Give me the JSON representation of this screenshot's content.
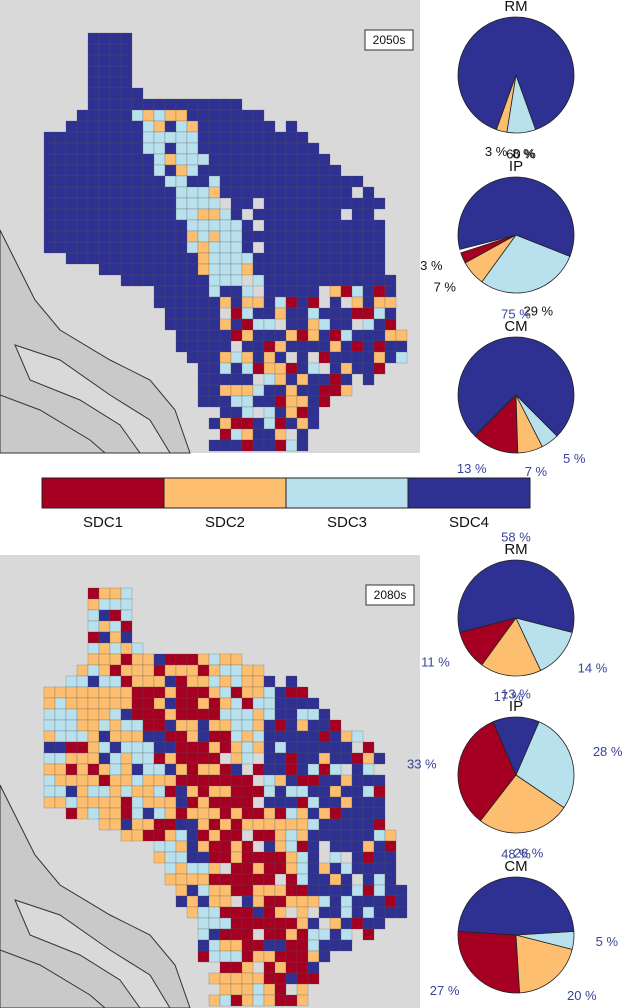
{
  "chart_data": {
    "type": "pie",
    "legend": {
      "categories": [
        "SDC1",
        "SDC2",
        "SDC3",
        "SDC4"
      ],
      "colors": [
        "#a50021",
        "#fdbf6f",
        "#b9e1ed",
        "#2e3192"
      ]
    },
    "panels": [
      {
        "period": "2050s",
        "pies": [
          {
            "title": "RM",
            "label_color": "#111111",
            "values": [
              null,
              3,
              8,
              89
            ],
            "value_labels": [
              null,
              "3 %",
              "8 %",
              "89 %"
            ]
          },
          {
            "title": "IP",
            "label_color": "#111111",
            "values": [
              3,
              7,
              29,
              60
            ],
            "value_labels": [
              "3 %",
              "7 %",
              "29 %",
              "60 %"
            ]
          },
          {
            "title": "CM",
            "label_color": "#3a4499",
            "values": [
              13,
              7,
              5,
              75
            ],
            "value_labels": [
              "13 %",
              "7 %",
              "5 %",
              "75 %"
            ]
          }
        ]
      },
      {
        "period": "2080s",
        "pies": [
          {
            "title": "RM",
            "label_color": "#3a4499",
            "values": [
              11,
              17,
              14,
              58
            ],
            "value_labels": [
              "11 %",
              "17 %",
              "14 %",
              "58 %"
            ]
          },
          {
            "title": "IP",
            "label_color": "#3a4499",
            "values": [
              33,
              26,
              28,
              13
            ],
            "value_labels": [
              "33 %",
              "26 %",
              "28 %",
              "13 %"
            ]
          },
          {
            "title": "CM",
            "label_color": "#3a4499",
            "values": [
              27,
              20,
              5,
              48
            ],
            "value_labels": [
              "27 %",
              "20 %",
              "5 %",
              "48 %"
            ]
          }
        ]
      }
    ]
  }
}
